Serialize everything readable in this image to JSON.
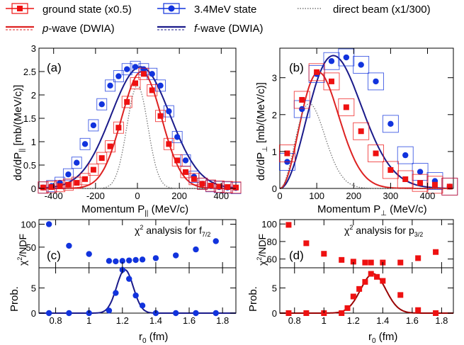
{
  "colors": {
    "red": "#ee1111",
    "blue": "#1133dd",
    "blue_line": "#1a1a8a",
    "red_line": "#dd2222",
    "beam": "#777777"
  },
  "legend": {
    "items": [
      {
        "label": "ground state (x0.5)",
        "marker": "square",
        "color": "#ee1111"
      },
      {
        "label": "3.4MeV state",
        "marker": "circle",
        "color": "#1133dd"
      },
      {
        "label": "direct beam (x1/300)",
        "marker": "dotted",
        "color": "#777777"
      },
      {
        "label_prefix": "p",
        "label_suffix": "-wave (DWIA)",
        "marker": "line",
        "color": "#dd2222"
      },
      {
        "label_prefix": "f",
        "label_suffix": "-wave (DWIA)",
        "marker": "line",
        "color": "#1a1a8a"
      }
    ]
  },
  "chart_data": [
    {
      "panel": "a",
      "panel_label": "(a)",
      "type": "scatter",
      "xlabel_main": "Momentum P",
      "xlabel_sub": "||",
      "xlabel_unit": " (MeV/c)",
      "ylabel_main": "dσ/dP",
      "ylabel_sub": "||",
      "ylabel_unit": " [mb/(MeV/c)]",
      "xlim": [
        -470,
        470
      ],
      "ylim": [
        0,
        3
      ],
      "xticks": [
        -400,
        -200,
        0,
        200,
        400
      ],
      "yticks": [
        0,
        0.5,
        1,
        1.5,
        2,
        2.5,
        3
      ],
      "ytick_labels": [
        "0",
        "0.5",
        "1",
        "1.5",
        "2",
        "2.5",
        "3"
      ],
      "series": [
        {
          "marker": "circle",
          "color": "#1133dd",
          "box": true,
          "x": [
            -450,
            -410,
            -370,
            -330,
            -290,
            -250,
            -210,
            -170,
            -130,
            -90,
            -50,
            -10,
            30,
            70,
            110,
            150,
            190,
            230,
            270,
            310,
            350,
            390,
            430,
            470
          ],
          "y": [
            0.02,
            0.05,
            0.12,
            0.3,
            0.55,
            0.95,
            1.35,
            1.8,
            2.2,
            2.4,
            2.55,
            2.6,
            2.55,
            2.45,
            2.2,
            1.65,
            1.1,
            0.6,
            0.25,
            0.1,
            0.05,
            0.03,
            0.02,
            0.01
          ]
        },
        {
          "marker": "square",
          "color": "#ee1111",
          "box": true,
          "x": [
            -450,
            -410,
            -370,
            -330,
            -290,
            -250,
            -210,
            -170,
            -130,
            -90,
            -50,
            -10,
            30,
            70,
            110,
            150,
            190,
            230,
            270,
            310,
            350,
            390,
            430,
            470
          ],
          "y": [
            0.02,
            0.03,
            0.05,
            0.08,
            0.12,
            0.2,
            0.4,
            0.65,
            0.9,
            1.3,
            1.85,
            2.25,
            2.45,
            2.1,
            1.55,
            0.95,
            0.6,
            0.35,
            0.2,
            0.1,
            0.06,
            0.04,
            0.03,
            0.02
          ]
        }
      ],
      "curves": [
        {
          "kind": "gauss",
          "color": "#1a1a8a",
          "amp": 2.6,
          "mu": 15,
          "sigma": 140
        },
        {
          "kind": "gauss",
          "color": "#dd2222",
          "amp": 2.5,
          "mu": 20,
          "sigma": 95
        },
        {
          "kind": "gauss",
          "color": "#777777",
          "dotted": true,
          "amp": 2.2,
          "mu": 0,
          "sigma": 50
        }
      ]
    },
    {
      "panel": "b",
      "panel_label": "(b)",
      "type": "scatter",
      "xlabel_main": "Momentum P",
      "xlabel_sub": "⊥",
      "xlabel_unit": " (MeV/c)",
      "ylabel_main": "dσ/dP",
      "ylabel_sub": "⊥",
      "ylabel_unit": " [mb/(MeV/c)]",
      "xlim": [
        0,
        470
      ],
      "ylim": [
        0,
        3.8
      ],
      "xticks": [
        0,
        100,
        200,
        300,
        400
      ],
      "yticks": [
        0,
        1,
        2,
        3
      ],
      "ytick_labels": [
        "0",
        "1",
        "2",
        "3"
      ],
      "series": [
        {
          "marker": "circle",
          "color": "#1133dd",
          "box": true,
          "x": [
            20,
            60,
            100,
            140,
            180,
            220,
            260,
            300,
            340,
            380,
            420,
            460
          ],
          "y": [
            0.72,
            2.15,
            3.1,
            3.45,
            3.55,
            3.35,
            2.9,
            1.75,
            0.9,
            0.45,
            0.2,
            0.05
          ]
        },
        {
          "marker": "square",
          "color": "#ee1111",
          "box": true,
          "x": [
            20,
            60,
            100,
            140,
            180,
            220,
            260,
            300,
            340,
            380,
            420,
            460
          ],
          "y": [
            0.95,
            2.4,
            3.15,
            2.9,
            2.2,
            1.55,
            0.95,
            0.5,
            0.25,
            0.15,
            0.1,
            0.05
          ]
        }
      ],
      "curves": [
        {
          "kind": "maxwell",
          "color": "#1a1a8a",
          "peak": 3.6,
          "mode": 145
        },
        {
          "kind": "maxwell",
          "color": "#dd2222",
          "peak": 3.15,
          "mode": 105
        },
        {
          "kind": "maxwell",
          "color": "#777777",
          "dotted": true,
          "peak": 2.3,
          "mode": 80
        }
      ]
    },
    {
      "panel": "c",
      "panel_label": "(c)",
      "type": "scatter",
      "annotation_prefix": "χ",
      "annotation_sup": "2",
      "annotation_mid": " analysis for f",
      "annotation_sub": "7/2",
      "ylabel_upper_main": "χ",
      "ylabel_upper_sup": "2",
      "ylabel_upper_rest": "/NDF",
      "ylabel_lower": "Prob.",
      "xlabel_main": "r",
      "xlabel_sub": "0",
      "xlabel_unit": " (fm)",
      "xlim": [
        0.7,
        1.88
      ],
      "xticks": [
        0.8,
        1,
        1.2,
        1.4,
        1.6,
        1.8
      ],
      "xtick_labels": [
        "0.8",
        "1",
        "1.2",
        "1.4",
        "1.6",
        "1.8"
      ],
      "upper": {
        "ylim": [
          5,
          110
        ],
        "yticks": [
          50,
          100
        ],
        "ytick_labels": [
          "50",
          "100"
        ],
        "marker": "circle",
        "color": "#1133dd",
        "x": [
          0.76,
          0.88,
          1.0,
          1.12,
          1.16,
          1.2,
          1.24,
          1.28,
          1.32,
          1.4,
          1.52,
          1.64,
          1.76
        ],
        "y": [
          100,
          53,
          35,
          20,
          19,
          20,
          21,
          22,
          23,
          26,
          32,
          45,
          63
        ]
      },
      "lower": {
        "ylim": [
          0,
          9
        ],
        "yticks": [
          0,
          5
        ],
        "ytick_labels": [
          "0",
          "5"
        ],
        "marker": "circle",
        "color": "#1133dd",
        "curve_color": "#1a1a8a",
        "x": [
          0.76,
          0.88,
          1.0,
          1.12,
          1.16,
          1.2,
          1.24,
          1.28,
          1.32,
          1.4,
          1.52,
          1.64,
          1.76
        ],
        "y": [
          0,
          0,
          0,
          0.5,
          4,
          8.6,
          6.8,
          3.5,
          1.5,
          0,
          0,
          0,
          0
        ],
        "curve": {
          "amp": 8.6,
          "mu": 1.215,
          "sigma": 0.05
        }
      }
    },
    {
      "panel": "d",
      "panel_label": "(d)",
      "type": "scatter",
      "annotation_prefix": "χ",
      "annotation_sup": "2",
      "annotation_mid": " analysis for p",
      "annotation_sub": "3/2",
      "ylabel_upper_main": "χ",
      "ylabel_upper_sup": "2",
      "ylabel_upper_rest": "/NDF",
      "ylabel_lower": "Prob.",
      "xlabel_main": "r",
      "xlabel_sub": "0",
      "xlabel_unit": " (fm)",
      "xlim": [
        0.7,
        1.88
      ],
      "xticks": [
        0.8,
        1,
        1.2,
        1.4,
        1.6,
        1.8
      ],
      "xtick_labels": [
        "0.8",
        "1",
        "1.2",
        "1.4",
        "1.6",
        "1.8"
      ],
      "upper": {
        "ylim": [
          50,
          105
        ],
        "yticks": [
          60,
          80,
          100
        ],
        "ytick_labels": [
          "60",
          "80",
          "100"
        ],
        "marker": "square",
        "color": "#ee1111",
        "x": [
          0.76,
          0.88,
          1.0,
          1.12,
          1.2,
          1.28,
          1.32,
          1.4,
          1.52,
          1.64,
          1.76
        ],
        "y": [
          99,
          78,
          66,
          59,
          57,
          56,
          56,
          56,
          56,
          61,
          68
        ]
      },
      "lower": {
        "ylim": [
          0,
          9
        ],
        "yticks": [
          0,
          5
        ],
        "ytick_labels": [
          "0",
          "5"
        ],
        "marker": "square",
        "color": "#ee1111",
        "curve_color": "#990000",
        "x": [
          0.76,
          0.88,
          1.0,
          1.12,
          1.16,
          1.2,
          1.24,
          1.28,
          1.32,
          1.36,
          1.4,
          1.52,
          1.64,
          1.76
        ],
        "y": [
          0,
          0,
          0,
          0,
          1,
          3.3,
          4.8,
          6.2,
          7.8,
          7.2,
          6.4,
          3.6,
          0.6,
          0
        ],
        "curve": {
          "amp": 7.8,
          "mu": 1.335,
          "sigma": 0.085
        }
      }
    }
  ]
}
